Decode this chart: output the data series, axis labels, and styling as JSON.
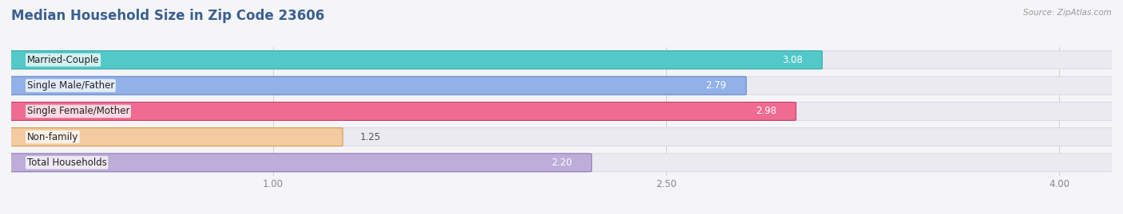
{
  "title": "Median Household Size in Zip Code 23606",
  "source": "Source: ZipAtlas.com",
  "categories": [
    "Married-Couple",
    "Single Male/Father",
    "Single Female/Mother",
    "Non-family",
    "Total Households"
  ],
  "values": [
    3.08,
    2.79,
    2.98,
    1.25,
    2.2
  ],
  "bar_colors": [
    "#45c5c5",
    "#8aace8",
    "#f0608a",
    "#f5c89a",
    "#b8a8d8"
  ],
  "bar_edge_colors": [
    "#30a8a8",
    "#6080c0",
    "#c83060",
    "#d09840",
    "#9070b0"
  ],
  "xlim_data": [
    0.0,
    4.2
  ],
  "xmin": 0.0,
  "xmax": 4.2,
  "xticks": [
    1.0,
    2.5,
    4.0
  ],
  "background_color": "#f5f5f8",
  "bar_bg_color": "#eaeaf0",
  "title_color": "#3a6090",
  "label_fontsize": 8.5,
  "title_fontsize": 12,
  "value_fontsize": 8.5,
  "bar_height": 0.68,
  "bar_gap": 0.12
}
